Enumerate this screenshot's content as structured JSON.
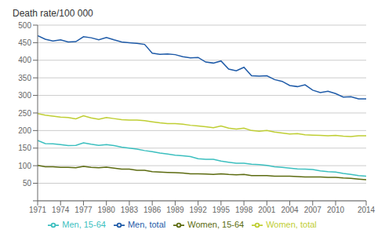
{
  "chart_data": {
    "type": "line",
    "ylabel": "Death rate/100 000",
    "x": [
      1971,
      1972,
      1973,
      1974,
      1975,
      1976,
      1977,
      1978,
      1979,
      1980,
      1981,
      1982,
      1983,
      1984,
      1985,
      1986,
      1987,
      1988,
      1989,
      1990,
      1991,
      1992,
      1993,
      1994,
      1995,
      1996,
      1997,
      1998,
      1999,
      2000,
      2001,
      2002,
      2003,
      2004,
      2005,
      2006,
      2007,
      2008,
      2009,
      2010,
      2011,
      2012,
      2013,
      2014
    ],
    "series": [
      {
        "name": "Men, total",
        "color": "#1F5BA8",
        "values": [
          470,
          460,
          455,
          458,
          452,
          453,
          467,
          464,
          458,
          465,
          458,
          452,
          450,
          448,
          445,
          420,
          417,
          418,
          416,
          410,
          407,
          408,
          395,
          392,
          398,
          375,
          370,
          380,
          356,
          355,
          356,
          345,
          340,
          328,
          325,
          330,
          315,
          308,
          312,
          305,
          295,
          296,
          290,
          290
        ]
      },
      {
        "name": "Women, total",
        "color": "#BFCE33",
        "values": [
          248,
          244,
          241,
          238,
          237,
          233,
          242,
          236,
          232,
          237,
          234,
          231,
          230,
          230,
          228,
          225,
          222,
          220,
          220,
          218,
          215,
          213,
          211,
          208,
          213,
          207,
          204,
          207,
          200,
          198,
          200,
          196,
          193,
          190,
          191,
          188,
          187,
          186,
          185,
          186,
          184,
          183,
          185,
          185
        ]
      },
      {
        "name": "Men, 15-64",
        "color": "#3BBFBF",
        "values": [
          172,
          163,
          162,
          160,
          157,
          158,
          165,
          161,
          158,
          160,
          157,
          153,
          150,
          147,
          143,
          140,
          136,
          133,
          130,
          128,
          126,
          120,
          118,
          118,
          113,
          110,
          107,
          107,
          104,
          103,
          101,
          97,
          95,
          93,
          91,
          90,
          89,
          85,
          83,
          82,
          78,
          75,
          72,
          70
        ]
      },
      {
        "name": "Women, 15-64",
        "color": "#5C6B10",
        "values": [
          101,
          97,
          97,
          95,
          95,
          94,
          98,
          95,
          94,
          96,
          93,
          90,
          90,
          87,
          87,
          83,
          82,
          81,
          80,
          79,
          77,
          77,
          76,
          75,
          77,
          75,
          74,
          75,
          72,
          72,
          72,
          70,
          70,
          70,
          69,
          68,
          68,
          68,
          67,
          67,
          65,
          64,
          62,
          60
        ]
      }
    ],
    "xlim": [
      1971,
      2014
    ],
    "xticks": [
      1971,
      1974,
      1977,
      1980,
      1983,
      1986,
      1989,
      1992,
      1995,
      1998,
      2001,
      2004,
      2007,
      2010,
      2014
    ],
    "ylim": [
      0,
      500
    ],
    "yticks": [
      {
        "value": 0,
        "label": null
      },
      50,
      100,
      150,
      200,
      250,
      300,
      350,
      400,
      450,
      500
    ],
    "grid": true,
    "legend": "bottom"
  }
}
